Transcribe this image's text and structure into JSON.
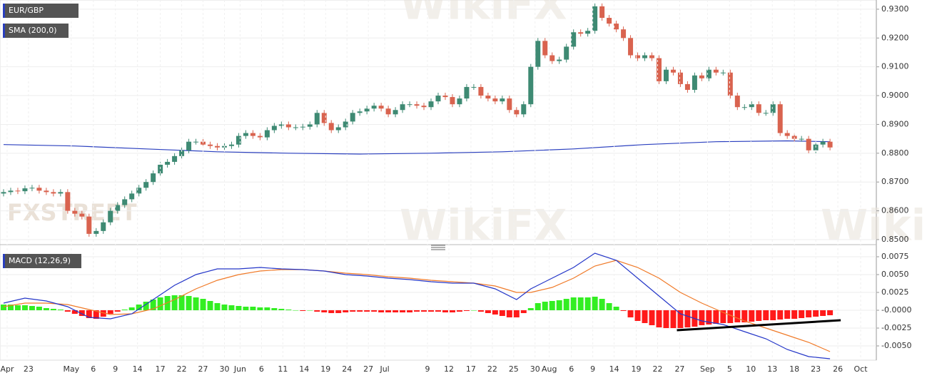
{
  "chart_data": [
    {
      "type": "candlestick",
      "title": "EUR/GBP",
      "up_color": "#3e8a73",
      "down_color": "#d9634f",
      "xlim": [
        -0.5,
        122.5
      ],
      "ylim": [
        0.849,
        0.9332
      ],
      "yticks": [
        {
          "value": 0.93,
          "label": "0.9300"
        },
        {
          "value": 0.92,
          "label": "0.9200"
        },
        {
          "value": 0.91,
          "label": "0.9100"
        },
        {
          "value": 0.9,
          "label": "0.9000"
        },
        {
          "value": 0.89,
          "label": "0.8900"
        },
        {
          "value": 0.88,
          "label": "0.8800"
        },
        {
          "value": 0.87,
          "label": "0.8700"
        },
        {
          "value": 0.86,
          "label": "0.8600"
        },
        {
          "value": 0.85,
          "label": "0.8500"
        }
      ],
      "open": [
        0.866,
        0.8665,
        0.867,
        0.8668,
        0.8678,
        0.868,
        0.867,
        0.8665,
        0.866,
        0.8665,
        0.86,
        0.859,
        0.858,
        0.852,
        0.853,
        0.856,
        0.86,
        0.862,
        0.864,
        0.866,
        0.868,
        0.87,
        0.873,
        0.876,
        0.877,
        0.879,
        0.881,
        0.884,
        0.884,
        0.883,
        0.8825,
        0.882,
        0.8825,
        0.883,
        0.886,
        0.887,
        0.886,
        0.8855,
        0.888,
        0.8895,
        0.89,
        0.889,
        0.889,
        0.8892,
        0.89,
        0.894,
        0.8905,
        0.888,
        0.889,
        0.891,
        0.894,
        0.8945,
        0.8955,
        0.8965,
        0.8955,
        0.8935,
        0.895,
        0.897,
        0.897,
        0.8965,
        0.896,
        0.898,
        0.9,
        0.8995,
        0.897,
        0.899,
        0.903,
        0.903,
        0.9,
        0.899,
        0.898,
        0.899,
        0.895,
        0.8935,
        0.897,
        0.91,
        0.919,
        0.914,
        0.912,
        0.9125,
        0.917,
        0.922,
        0.9215,
        0.9225,
        0.931,
        0.927,
        0.925,
        0.923,
        0.92,
        0.914,
        0.913,
        0.914,
        0.913,
        0.905,
        0.909,
        0.908,
        0.904,
        0.902,
        0.907,
        0.906,
        0.909,
        0.908,
        0.908,
        0.9,
        0.896,
        0.896,
        0.897,
        0.894,
        0.894,
        0.897,
        0.887,
        0.886,
        0.885,
        0.885,
        0.881,
        0.883,
        0.884
      ],
      "high": [
        0.8675,
        0.868,
        0.868,
        0.8688,
        0.869,
        0.869,
        0.868,
        0.8675,
        0.8675,
        0.8675,
        0.861,
        0.86,
        0.859,
        0.854,
        0.857,
        0.861,
        0.863,
        0.865,
        0.867,
        0.869,
        0.871,
        0.874,
        0.877,
        0.878,
        0.88,
        0.882,
        0.885,
        0.885,
        0.885,
        0.884,
        0.8835,
        0.8835,
        0.884,
        0.887,
        0.888,
        0.888,
        0.887,
        0.889,
        0.8905,
        0.891,
        0.891,
        0.89,
        0.8902,
        0.891,
        0.895,
        0.895,
        0.8915,
        0.89,
        0.892,
        0.895,
        0.8955,
        0.8965,
        0.8975,
        0.8975,
        0.8965,
        0.896,
        0.898,
        0.898,
        0.898,
        0.8975,
        0.899,
        0.901,
        0.901,
        0.9005,
        0.9,
        0.904,
        0.904,
        0.904,
        0.901,
        0.9,
        0.9,
        0.9,
        0.896,
        0.898,
        0.911,
        0.92,
        0.92,
        0.915,
        0.9135,
        0.918,
        0.923,
        0.923,
        0.9235,
        0.932,
        0.932,
        0.928,
        0.926,
        0.924,
        0.921,
        0.915,
        0.915,
        0.915,
        0.914,
        0.91,
        0.91,
        0.909,
        0.905,
        0.908,
        0.908,
        0.91,
        0.91,
        0.909,
        0.909,
        0.901,
        0.897,
        0.898,
        0.898,
        0.895,
        0.898,
        0.898,
        0.888,
        0.887,
        0.886,
        0.886,
        0.884,
        0.885,
        0.885
      ],
      "low": [
        0.865,
        0.8655,
        0.8658,
        0.8658,
        0.8668,
        0.866,
        0.8655,
        0.865,
        0.865,
        0.859,
        0.858,
        0.857,
        0.851,
        0.851,
        0.852,
        0.855,
        0.859,
        0.861,
        0.863,
        0.865,
        0.867,
        0.869,
        0.872,
        0.875,
        0.876,
        0.878,
        0.88,
        0.883,
        0.882,
        0.8815,
        0.881,
        0.881,
        0.8815,
        0.882,
        0.885,
        0.885,
        0.8845,
        0.8845,
        0.887,
        0.8885,
        0.888,
        0.888,
        0.888,
        0.8882,
        0.889,
        0.8895,
        0.887,
        0.887,
        0.888,
        0.89,
        0.893,
        0.8935,
        0.8945,
        0.8945,
        0.8925,
        0.8925,
        0.894,
        0.896,
        0.8955,
        0.895,
        0.895,
        0.897,
        0.8985,
        0.896,
        0.896,
        0.898,
        0.902,
        0.899,
        0.898,
        0.897,
        0.897,
        0.894,
        0.8925,
        0.8925,
        0.896,
        0.909,
        0.913,
        0.911,
        0.911,
        0.9115,
        0.916,
        0.9205,
        0.9205,
        0.9215,
        0.926,
        0.924,
        0.922,
        0.919,
        0.913,
        0.912,
        0.912,
        0.912,
        0.904,
        0.904,
        0.907,
        0.903,
        0.901,
        0.901,
        0.905,
        0.905,
        0.907,
        0.907,
        0.899,
        0.895,
        0.895,
        0.895,
        0.893,
        0.893,
        0.893,
        0.886,
        0.885,
        0.884,
        0.884,
        0.88,
        0.88,
        0.882,
        0.881
      ],
      "close": [
        0.8665,
        0.867,
        0.8668,
        0.8678,
        0.868,
        0.867,
        0.8665,
        0.866,
        0.8665,
        0.86,
        0.859,
        0.858,
        0.852,
        0.853,
        0.856,
        0.86,
        0.862,
        0.864,
        0.866,
        0.868,
        0.87,
        0.873,
        0.876,
        0.877,
        0.879,
        0.881,
        0.884,
        0.884,
        0.883,
        0.8825,
        0.882,
        0.8825,
        0.883,
        0.886,
        0.887,
        0.886,
        0.8855,
        0.888,
        0.8895,
        0.89,
        0.889,
        0.889,
        0.8892,
        0.89,
        0.894,
        0.8905,
        0.888,
        0.889,
        0.891,
        0.894,
        0.8945,
        0.8955,
        0.8965,
        0.8955,
        0.8935,
        0.895,
        0.897,
        0.897,
        0.8965,
        0.896,
        0.898,
        0.9,
        0.8995,
        0.897,
        0.899,
        0.903,
        0.903,
        0.9,
        0.899,
        0.898,
        0.899,
        0.895,
        0.8935,
        0.897,
        0.91,
        0.919,
        0.914,
        0.912,
        0.9125,
        0.917,
        0.922,
        0.9215,
        0.9225,
        0.931,
        0.927,
        0.925,
        0.923,
        0.92,
        0.914,
        0.913,
        0.914,
        0.913,
        0.905,
        0.909,
        0.908,
        0.904,
        0.902,
        0.907,
        0.906,
        0.909,
        0.908,
        0.908,
        0.9,
        0.896,
        0.896,
        0.897,
        0.894,
        0.894,
        0.897,
        0.887,
        0.886,
        0.885,
        0.885,
        0.881,
        0.883,
        0.884,
        0.882
      ],
      "series": [
        {
          "name": "SMA (200,0)",
          "color": "#2a3fbf",
          "x": [
            0,
            10,
            20,
            30,
            40,
            50,
            60,
            70,
            80,
            90,
            100,
            110,
            116
          ],
          "values": [
            0.883,
            0.8825,
            0.8815,
            0.8805,
            0.88,
            0.8797,
            0.88,
            0.8805,
            0.8815,
            0.883,
            0.884,
            0.8843,
            0.884
          ]
        }
      ]
    },
    {
      "type": "macd",
      "title": "MACD (12,26,9)",
      "xlim": [
        -0.5,
        122.5
      ],
      "ylim": [
        -0.007,
        0.0085
      ],
      "yticks": [
        {
          "value": 0.0075,
          "label": "0.0075"
        },
        {
          "value": 0.005,
          "label": "0.0050"
        },
        {
          "value": 0.0025,
          "label": "0.0025"
        },
        {
          "value": 0,
          "label": "-0.0000"
        },
        {
          "value": -0.0025,
          "label": "-0.0025"
        },
        {
          "value": -0.005,
          "label": "-0.0050"
        }
      ],
      "xticks": [
        {
          "value": 0.5,
          "label": "Apr"
        },
        {
          "value": 3.5,
          "label": "23"
        },
        {
          "value": 9.5,
          "label": "May"
        },
        {
          "value": 12.6,
          "label": "6"
        },
        {
          "value": 15.7,
          "label": "9"
        },
        {
          "value": 18.8,
          "label": "14"
        },
        {
          "value": 22,
          "label": "17"
        },
        {
          "value": 25,
          "label": "22"
        },
        {
          "value": 28,
          "label": "27"
        },
        {
          "value": 31,
          "label": "30"
        },
        {
          "value": 33.2,
          "label": "Jun"
        },
        {
          "value": 36.2,
          "label": "6"
        },
        {
          "value": 39.2,
          "label": "11"
        },
        {
          "value": 42.2,
          "label": "14"
        },
        {
          "value": 45.2,
          "label": "19"
        },
        {
          "value": 48.2,
          "label": "24"
        },
        {
          "value": 51.2,
          "label": "27"
        },
        {
          "value": 53.5,
          "label": "Jul"
        },
        {
          "value": 59.5,
          "label": "9"
        },
        {
          "value": 62.5,
          "label": "12"
        },
        {
          "value": 65.6,
          "label": "17"
        },
        {
          "value": 68.6,
          "label": "22"
        },
        {
          "value": 71.6,
          "label": "25"
        },
        {
          "value": 74.6,
          "label": "30"
        },
        {
          "value": 76.6,
          "label": "Aug"
        },
        {
          "value": 79.7,
          "label": "6"
        },
        {
          "value": 82.7,
          "label": "9"
        },
        {
          "value": 85.7,
          "label": "14"
        },
        {
          "value": 88.8,
          "label": "19"
        },
        {
          "value": 91.8,
          "label": "22"
        },
        {
          "value": 94.9,
          "label": "27"
        },
        {
          "value": 98.8,
          "label": "Sep"
        },
        {
          "value": 101.9,
          "label": "5"
        },
        {
          "value": 104.9,
          "label": "10"
        },
        {
          "value": 107.9,
          "label": "13"
        },
        {
          "value": 111,
          "label": "18"
        },
        {
          "value": 114,
          "label": "23"
        },
        {
          "value": 117.1,
          "label": "26"
        },
        {
          "value": 120.3,
          "label": "Oct"
        }
      ],
      "histogram": {
        "up_color": "#33ee22",
        "down_color": "#ff1a1a",
        "values": [
          0.0008,
          0.0008,
          0.0007,
          0.0007,
          0.0006,
          0.0005,
          0.0003,
          0.0002,
          0.0001,
          -0.0002,
          -0.0005,
          -0.0008,
          -0.0011,
          -0.0012,
          -0.0009,
          -0.0005,
          -0.0002,
          0.0001,
          0.0004,
          0.0008,
          0.0012,
          0.0015,
          0.0018,
          0.002,
          0.0021,
          0.0021,
          0.002,
          0.0018,
          0.0016,
          0.0013,
          0.001,
          0.0008,
          0.0007,
          0.0006,
          0.0005,
          0.0005,
          0.0004,
          0.0004,
          0.0003,
          0.0002,
          0.0001,
          0.0,
          -0.0001,
          0.0,
          -0.0002,
          -0.0003,
          -0.0004,
          -0.0004,
          -0.0003,
          -0.0002,
          -0.0002,
          -0.0002,
          -0.0002,
          -0.0003,
          -0.0003,
          -0.0003,
          -0.0003,
          -0.0003,
          -0.0002,
          -0.0002,
          -0.0002,
          -0.0002,
          -0.0003,
          -0.0003,
          -0.0002,
          -0.0001,
          0.0,
          -0.0002,
          -0.0004,
          -0.0006,
          -0.0008,
          -0.001,
          -0.001,
          -0.0004,
          0.0003,
          0.001,
          0.0012,
          0.0013,
          0.0014,
          0.0016,
          0.0018,
          0.0018,
          0.0018,
          0.0019,
          0.0016,
          0.001,
          0.0005,
          -0.0001,
          -0.001,
          -0.0015,
          -0.0018,
          -0.0021,
          -0.0024,
          -0.0025,
          -0.0025,
          -0.0025,
          -0.0024,
          -0.0023,
          -0.0021,
          -0.002,
          -0.0019,
          -0.0018,
          -0.0018,
          -0.0017,
          -0.0017,
          -0.0016,
          -0.0015,
          -0.0014,
          -0.0014,
          -0.0013,
          -0.0012,
          -0.0012,
          -0.0011,
          -0.001,
          -0.0009,
          -0.0008,
          -0.0007
        ]
      },
      "macd_line": {
        "color": "#2436c8",
        "x": [
          0,
          3,
          6,
          9,
          12,
          15,
          18,
          21,
          24,
          27,
          30,
          33,
          36,
          39,
          42,
          45,
          48,
          51,
          54,
          57,
          60,
          63,
          66,
          69,
          72,
          74,
          77,
          80,
          83,
          86,
          89,
          92,
          95,
          98,
          101,
          104,
          107,
          110,
          113,
          116
        ],
        "values": [
          0.001,
          0.0017,
          0.0013,
          0.0005,
          -0.001,
          -0.0012,
          -0.0005,
          0.0015,
          0.0035,
          0.005,
          0.0058,
          0.0058,
          0.006,
          0.0058,
          0.0057,
          0.0055,
          0.005,
          0.0048,
          0.0045,
          0.0043,
          0.004,
          0.0038,
          0.0038,
          0.003,
          0.0015,
          0.003,
          0.0045,
          0.006,
          0.008,
          0.007,
          0.0045,
          0.002,
          -0.0005,
          -0.0015,
          -0.002,
          -0.003,
          -0.004,
          -0.0055,
          -0.0065,
          -0.0068
        ]
      },
      "signal_line": {
        "color": "#f07a28",
        "x": [
          0,
          3,
          6,
          9,
          12,
          15,
          18,
          21,
          24,
          27,
          30,
          33,
          36,
          39,
          42,
          45,
          48,
          51,
          54,
          57,
          60,
          63,
          66,
          69,
          72,
          74,
          77,
          80,
          83,
          86,
          89,
          92,
          95,
          98,
          101,
          104,
          107,
          110,
          113,
          116
        ],
        "values": [
          0.0005,
          0.001,
          0.001,
          0.0008,
          0.0001,
          -0.0006,
          -0.0005,
          0.0002,
          0.0015,
          0.003,
          0.0042,
          0.005,
          0.0055,
          0.0057,
          0.0057,
          0.0055,
          0.0052,
          0.005,
          0.0047,
          0.0045,
          0.0042,
          0.004,
          0.0038,
          0.0034,
          0.0025,
          0.0025,
          0.0032,
          0.0045,
          0.0062,
          0.007,
          0.006,
          0.0045,
          0.0025,
          0.001,
          -0.0003,
          -0.0015,
          -0.0025,
          -0.0035,
          -0.0045,
          -0.0058
        ]
      },
      "trendline": {
        "color": "#000000",
        "x": [
          94.5,
          117.5
        ],
        "values": [
          -0.0028,
          -0.0014
        ]
      }
    }
  ],
  "watermarks": [
    "FXSTREET",
    "WikiFX"
  ]
}
